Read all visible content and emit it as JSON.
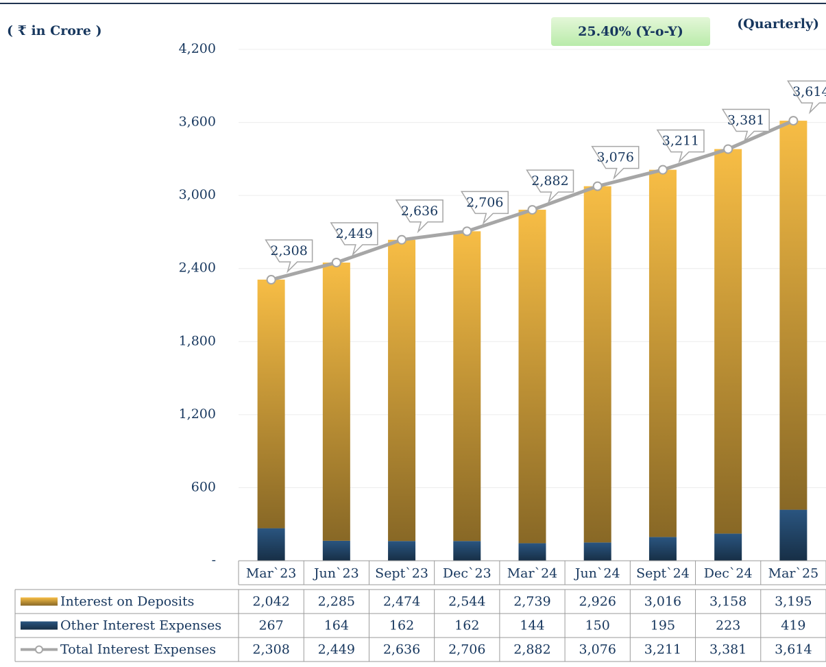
{
  "chart_data": {
    "type": "bar",
    "unit_label": "( ₹ in Crore )",
    "annotation": "25.40% (Y-o-Y)",
    "period_label": "(Quarterly)",
    "categories": [
      "Mar`23",
      "Jun`23",
      "Sept`23",
      "Dec`23",
      "Mar`24",
      "Jun`24",
      "Sept`24",
      "Dec`24",
      "Mar`25"
    ],
    "series": [
      {
        "name": "Interest on Deposits",
        "color": "#f7bd45",
        "type": "bar",
        "stack": true,
        "values": [
          2042,
          2285,
          2474,
          2544,
          2739,
          2926,
          3016,
          3158,
          3195
        ],
        "value_labels": [
          "2,042",
          "2,285",
          "2,474",
          "2,544",
          "2,739",
          "2,926",
          "3,016",
          "3,158",
          "3,195"
        ]
      },
      {
        "name": "Other Interest Expenses",
        "color": "#2a5580",
        "type": "bar",
        "stack": true,
        "values": [
          267,
          164,
          162,
          162,
          144,
          150,
          195,
          223,
          419
        ],
        "value_labels": [
          "267",
          "164",
          "162",
          "162",
          "144",
          "150",
          "195",
          "223",
          "419"
        ]
      },
      {
        "name": "Total Interest Expenses",
        "color": "#a6a6a6",
        "type": "line",
        "values": [
          2308,
          2449,
          2636,
          2706,
          2882,
          3076,
          3211,
          3381,
          3614
        ],
        "value_labels": [
          "2,308",
          "2,449",
          "2,636",
          "2,706",
          "2,882",
          "3,076",
          "3,211",
          "3,381",
          "3,614"
        ]
      }
    ],
    "ylim": [
      0,
      4200
    ],
    "yticks": [
      {
        "value": 0,
        "label": "-"
      },
      600,
      {
        "value": 1200,
        "label": "1,200"
      },
      {
        "value": 1800,
        "label": "1,800"
      },
      {
        "value": 2400,
        "label": "2,400"
      },
      {
        "value": 3000,
        "label": "3,000"
      },
      {
        "value": 3600,
        "label": "3,600"
      },
      {
        "value": 4200,
        "label": "4,200"
      }
    ],
    "grid": true
  }
}
